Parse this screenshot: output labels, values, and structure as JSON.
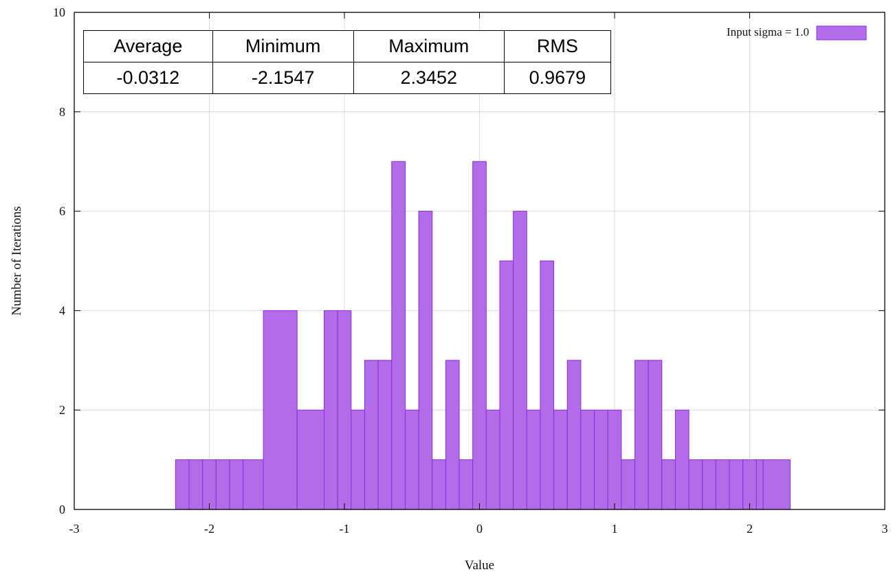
{
  "chart_data": {
    "type": "bar",
    "title": "",
    "xlabel": "Value",
    "ylabel": "Number of Iterations",
    "xlim": [
      -3,
      3
    ],
    "ylim": [
      0,
      10
    ],
    "xticks": [
      "-3",
      "-2",
      "-1",
      "0",
      "1",
      "2",
      "3"
    ],
    "yticks": [
      "0",
      "2",
      "4",
      "6",
      "8",
      "10"
    ],
    "grid": true,
    "legend_position": "top-right",
    "bar_color": "#b36ce8",
    "bar_edge_color": "#8a2be2",
    "series": [
      {
        "name": "Input sigma = 1.0",
        "bins": [
          {
            "x0": -2.25,
            "x1": -2.15,
            "count": 1
          },
          {
            "x0": -2.15,
            "x1": -2.05,
            "count": 1
          },
          {
            "x0": -2.05,
            "x1": -1.95,
            "count": 1
          },
          {
            "x0": -1.95,
            "x1": -1.85,
            "count": 1
          },
          {
            "x0": -1.85,
            "x1": -1.75,
            "count": 1
          },
          {
            "x0": -1.75,
            "x1": -1.6,
            "count": 1
          },
          {
            "x0": -1.6,
            "x1": -1.35,
            "count": 4
          },
          {
            "x0": -1.35,
            "x1": -1.15,
            "count": 2
          },
          {
            "x0": -1.15,
            "x1": -1.05,
            "count": 4
          },
          {
            "x0": -1.05,
            "x1": -0.95,
            "count": 4
          },
          {
            "x0": -0.95,
            "x1": -0.85,
            "count": 2
          },
          {
            "x0": -0.85,
            "x1": -0.75,
            "count": 3
          },
          {
            "x0": -0.75,
            "x1": -0.65,
            "count": 3
          },
          {
            "x0": -0.65,
            "x1": -0.55,
            "count": 7
          },
          {
            "x0": -0.55,
            "x1": -0.45,
            "count": 2
          },
          {
            "x0": -0.45,
            "x1": -0.35,
            "count": 6
          },
          {
            "x0": -0.35,
            "x1": -0.25,
            "count": 1
          },
          {
            "x0": -0.25,
            "x1": -0.15,
            "count": 3
          },
          {
            "x0": -0.15,
            "x1": -0.05,
            "count": 1
          },
          {
            "x0": -0.05,
            "x1": 0.05,
            "count": 7
          },
          {
            "x0": 0.05,
            "x1": 0.15,
            "count": 2
          },
          {
            "x0": 0.15,
            "x1": 0.25,
            "count": 5
          },
          {
            "x0": 0.25,
            "x1": 0.35,
            "count": 6
          },
          {
            "x0": 0.35,
            "x1": 0.45,
            "count": 2
          },
          {
            "x0": 0.45,
            "x1": 0.55,
            "count": 5
          },
          {
            "x0": 0.55,
            "x1": 0.65,
            "count": 2
          },
          {
            "x0": 0.65,
            "x1": 0.75,
            "count": 3
          },
          {
            "x0": 0.75,
            "x1": 0.85,
            "count": 2
          },
          {
            "x0": 0.85,
            "x1": 0.95,
            "count": 2
          },
          {
            "x0": 0.95,
            "x1": 1.05,
            "count": 2
          },
          {
            "x0": 1.05,
            "x1": 1.15,
            "count": 1
          },
          {
            "x0": 1.15,
            "x1": 1.25,
            "count": 3
          },
          {
            "x0": 1.25,
            "x1": 1.35,
            "count": 3
          },
          {
            "x0": 1.35,
            "x1": 1.45,
            "count": 1
          },
          {
            "x0": 1.45,
            "x1": 1.55,
            "count": 2
          },
          {
            "x0": 1.55,
            "x1": 1.65,
            "count": 1
          },
          {
            "x0": 1.65,
            "x1": 1.75,
            "count": 1
          },
          {
            "x0": 1.75,
            "x1": 1.85,
            "count": 1
          },
          {
            "x0": 1.85,
            "x1": 1.95,
            "count": 1
          },
          {
            "x0": 1.95,
            "x1": 2.05,
            "count": 1
          },
          {
            "x0": 2.05,
            "x1": 2.1,
            "count": 1
          },
          {
            "x0": 2.1,
            "x1": 2.3,
            "count": 1
          }
        ]
      }
    ]
  },
  "stats_table": {
    "headers": [
      "Average",
      "Minimum",
      "Maximum",
      "RMS"
    ],
    "values": [
      "-0.0312",
      "-2.1547",
      "2.3452",
      "0.9679"
    ]
  }
}
